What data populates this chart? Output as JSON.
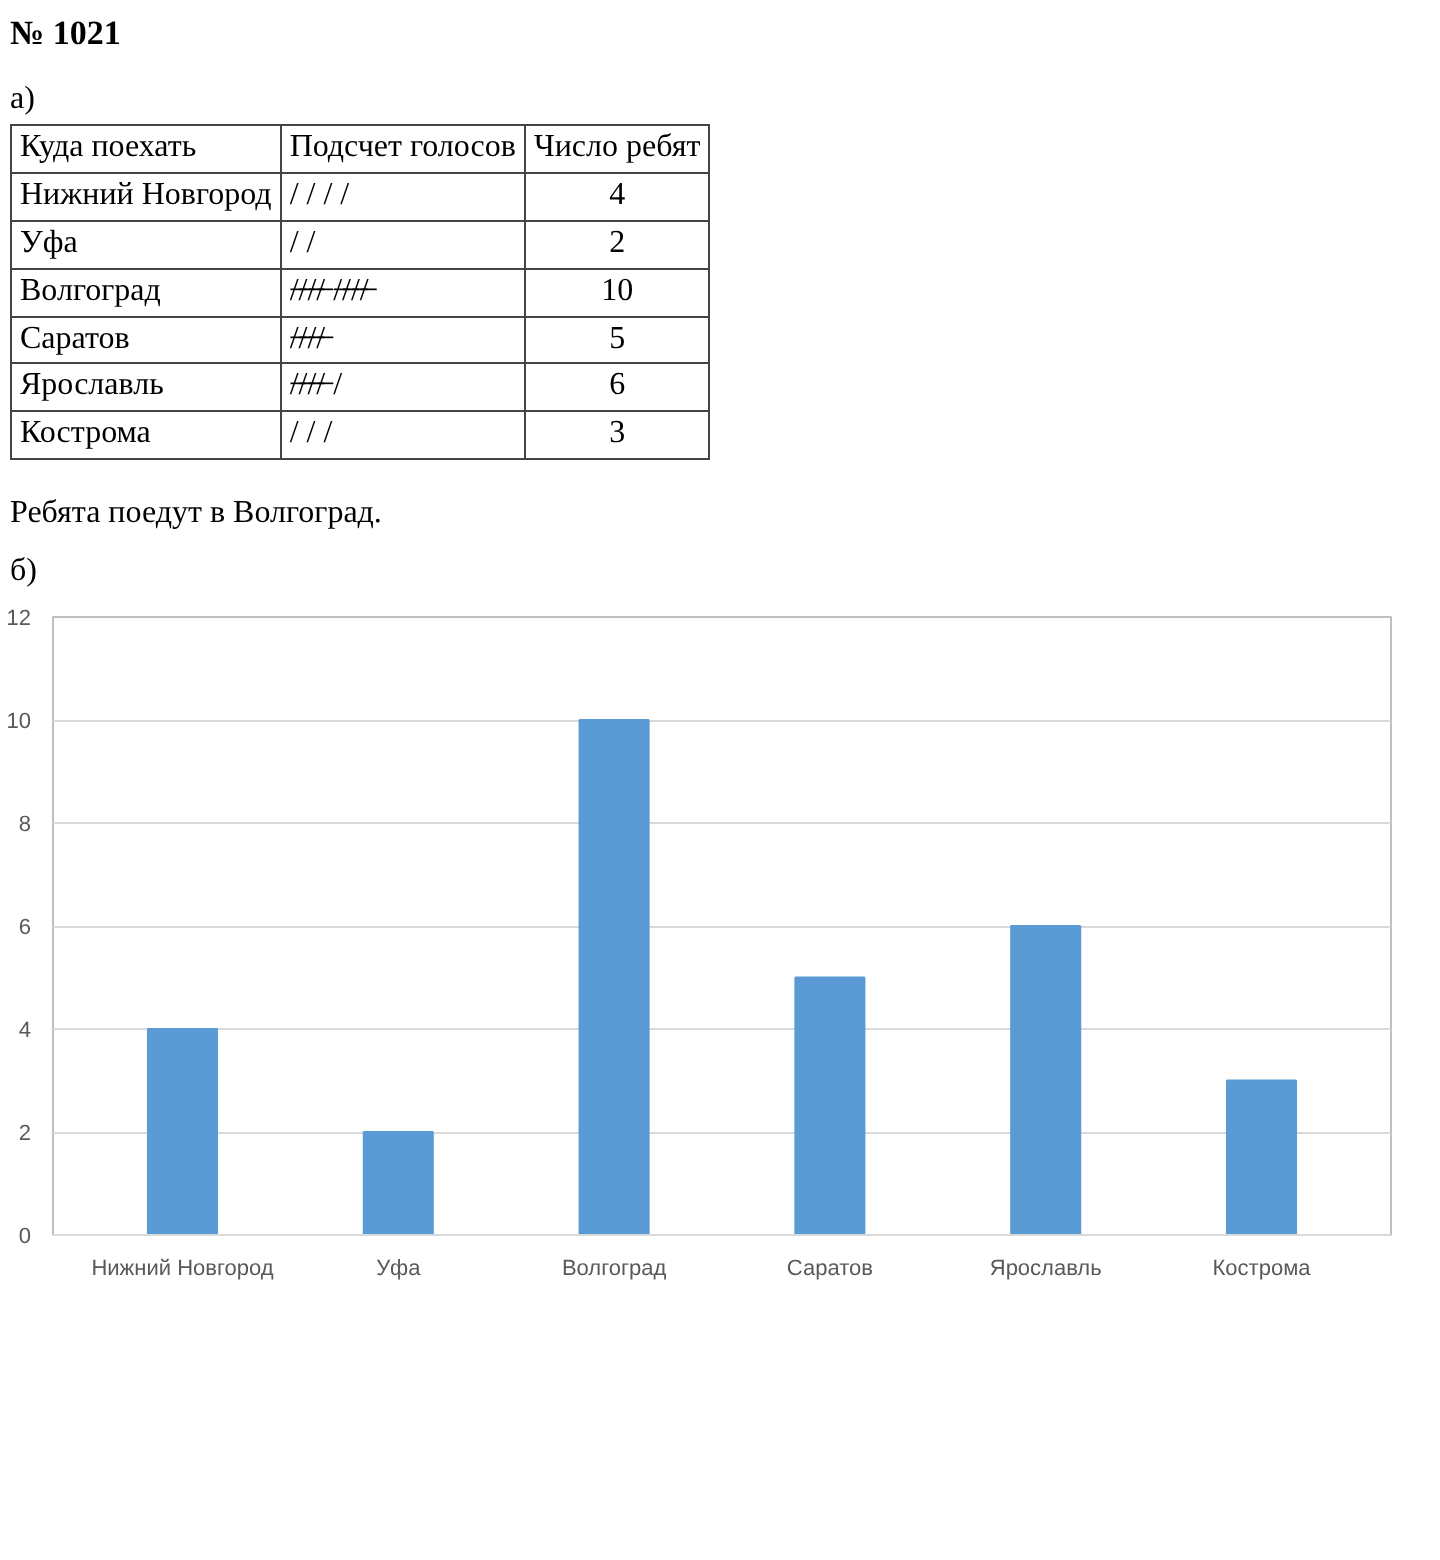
{
  "chart_data": {
    "type": "bar",
    "title": "№ 1021",
    "annotations": [
      "а)",
      "Куда поехать",
      "Подсчет голосов",
      "Число ребят",
      "/ / / /",
      "/ /",
      "/̶/̶/̶/̶ /̶/̶/̶/̶",
      "/̶/̶/̶/̶",
      "/̶/̶/̶/̶ /",
      "/ / /",
      "4",
      "2",
      "10",
      "5",
      "6",
      "3",
      "Ребята поедут в Волгоград.",
      "б)"
    ],
    "categories": [
      "Нижний Новгород",
      "Уфа",
      "Волгоград",
      "Саратов",
      "Ярославль",
      "Кострома"
    ],
    "values": [
      4,
      2,
      10,
      5,
      6,
      3
    ],
    "color": "#5b9bd5",
    "ylim": [
      0,
      12
    ],
    "yticks": [
      0,
      2,
      4,
      6,
      8,
      10,
      12
    ],
    "grid": "y"
  }
}
